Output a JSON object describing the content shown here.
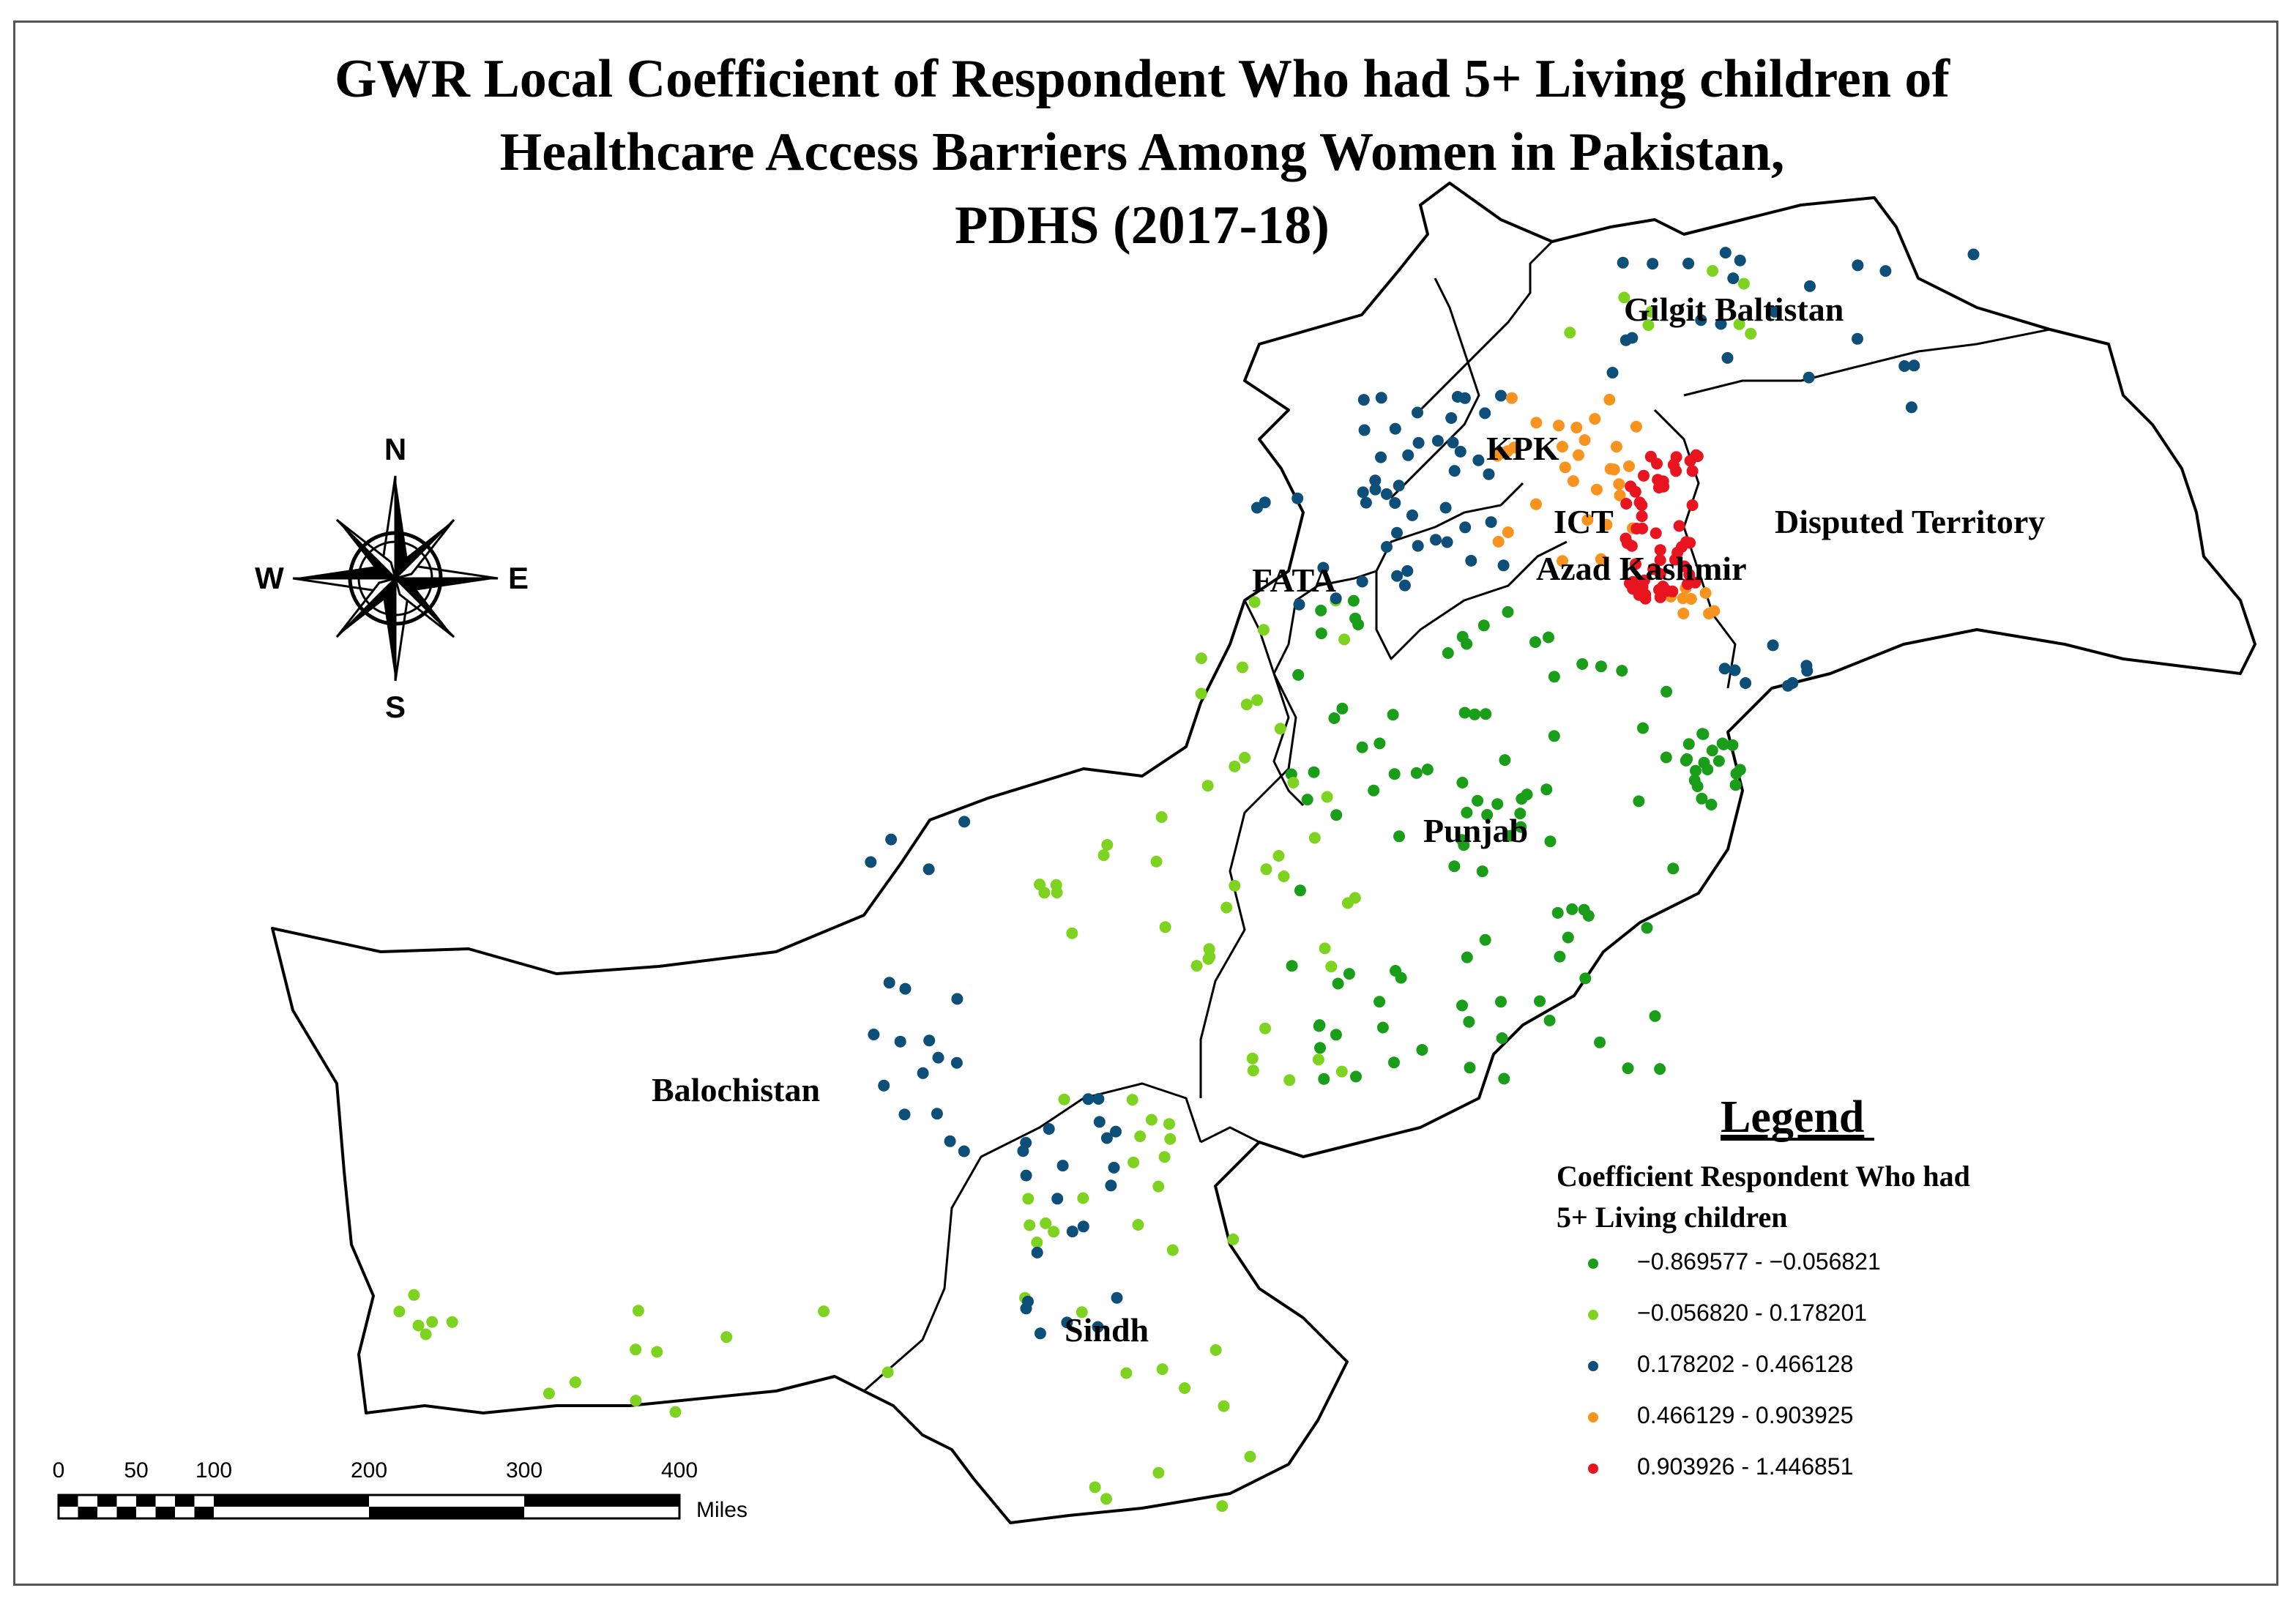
{
  "title": {
    "line1": "GWR Local Coefficient of Respondent Who had 5+ Living children of",
    "line2": "Healthcare Access Barriers Among Women in Pakistan,",
    "line3": "PDHS (2017-18)"
  },
  "regions": {
    "gilgit": "Gilgit Baltistan",
    "kpk": "KPK",
    "ict": "ICT",
    "disputed": "Disputed Territory",
    "azad": "Azad Kashmir",
    "fata": "FATA",
    "punjab": "Punjab",
    "balochistan": "Balochistan",
    "sindh": "Sindh"
  },
  "compass": {
    "n": "N",
    "s": "S",
    "e": "E",
    "w": "W"
  },
  "legend": {
    "title": "Legend",
    "subtitle_line1": "Coefficient Respondent Who had",
    "subtitle_line2": "5+ Living children",
    "classes": [
      {
        "label": "−0.869577 - −0.056821",
        "color": "#1a9e1a"
      },
      {
        "label": "−0.056820 - 0.178201",
        "color": "#7ed321"
      },
      {
        "label": "0.178202 - 0.466128",
        "color": "#0d4f78"
      },
      {
        "label": "0.466129 - 0.903925",
        "color": "#f7931e"
      },
      {
        "label": "0.903926 - 1.446851",
        "color": "#e8141f"
      }
    ]
  },
  "scale_bar": {
    "ticks": [
      "0",
      "50",
      "100",
      "200",
      "300",
      "400"
    ],
    "unit": "Miles"
  },
  "icons": {
    "compass": "compass-rose-icon"
  }
}
